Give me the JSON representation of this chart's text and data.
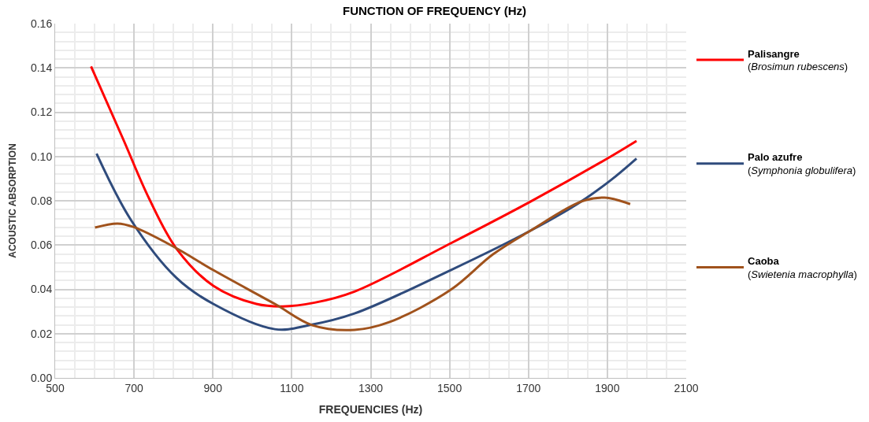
{
  "chart_data": {
    "type": "line",
    "title": "FUNCTION OF FREQUENCY (Hz)",
    "xlabel": "FREQUENCIES (Hz)",
    "ylabel": "ACOUSTIC ABSORPTION",
    "xlim": [
      500,
      2100
    ],
    "xticks": [
      500,
      700,
      900,
      1100,
      1300,
      1500,
      1700,
      1900,
      2100
    ],
    "ylim": [
      0,
      0.16
    ],
    "yticks": [
      {
        "value": 0,
        "label": "0.00"
      },
      0.02,
      0.04,
      0.06,
      0.08,
      {
        "value": 0.1,
        "label": "0.10"
      },
      0.12,
      0.14,
      0.16
    ],
    "grid": true,
    "legend": "right",
    "line_style": "solid",
    "marker": "none",
    "series": [
      {
        "name": "Palisangre (Brosimun rubescens)",
        "color": "#ff0000",
        "x": [
          591,
          672,
          739,
          808,
          901,
          1010,
          1077,
          1158,
          1259,
          1503,
          1705,
          1908,
          1974
        ],
        "values": [
          0.1407,
          0.108,
          0.0807,
          0.0583,
          0.0416,
          0.0334,
          0.0323,
          0.034,
          0.039,
          0.0608,
          0.0796,
          0.0999,
          0.107
        ]
      },
      {
        "name": "Palo azufre (Symphonia globulifera)",
        "color": "#2f4b7c",
        "x": [
          605,
          692,
          808,
          901,
          1057,
          1144,
          1259,
          1503,
          1705,
          1833,
          1908,
          1974
        ],
        "values": [
          0.1013,
          0.0714,
          0.0451,
          0.0334,
          0.022,
          0.0238,
          0.0291,
          0.0487,
          0.0665,
          0.0796,
          0.0892,
          0.0991
        ]
      },
      {
        "name": "Caoba (Swietenia macrophylla)",
        "color": "#a0521c",
        "x": [
          601,
          658,
          698,
          800,
          901,
          1057,
          1152,
          1259,
          1347,
          1503,
          1610,
          1705,
          1833,
          1893,
          1958
        ],
        "values": [
          0.0679,
          0.0697,
          0.0682,
          0.0593,
          0.0487,
          0.0334,
          0.0238,
          0.0217,
          0.0252,
          0.0398,
          0.0558,
          0.0665,
          0.0796,
          0.0814,
          0.0785
        ]
      }
    ]
  }
}
